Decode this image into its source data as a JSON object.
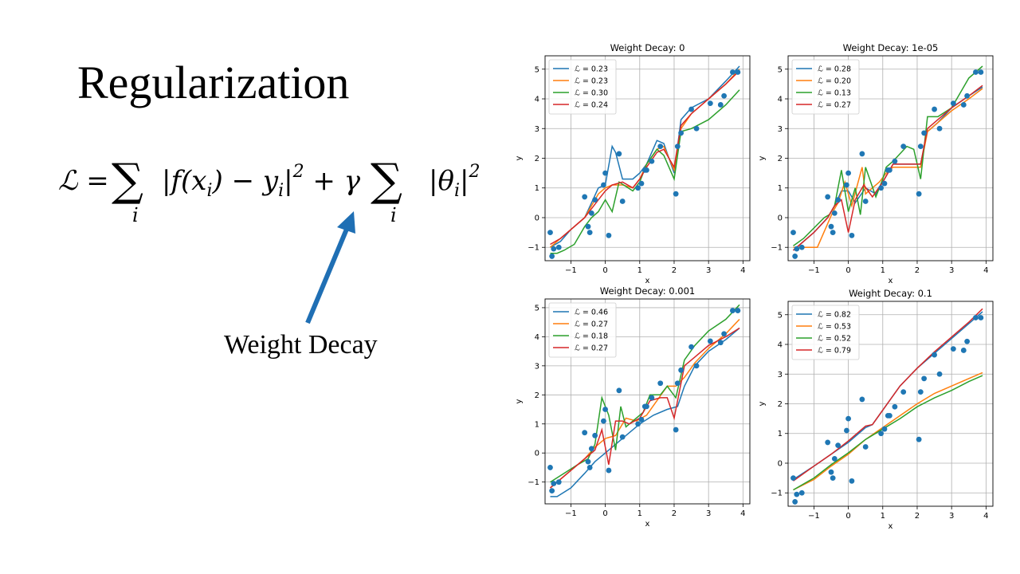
{
  "slide": {
    "title": "Regularization",
    "arrow_label": "Weight Decay",
    "formula": {
      "lhs": "ℒ = ",
      "sum": "∑",
      "sum_index": "i",
      "term1": "|f(x",
      "term1_sub": "i",
      "term1_mid": ") − y",
      "term1_sub2": "i",
      "term1_end": "|",
      "sq": "2",
      "plus_gamma": " + γ",
      "term2": "|θ",
      "term2_sub": "i",
      "term2_end": "|"
    },
    "arrow_color": "#1f6fb4"
  },
  "chart_data": [
    {
      "type": "line",
      "title": "Weight Decay: 0",
      "xlabel": "x",
      "ylabel": "y",
      "xlim": [
        -1.75,
        4.2
      ],
      "ylim": [
        -1.45,
        5.45
      ],
      "xticks": [
        -1,
        0,
        1,
        2,
        3,
        4
      ],
      "yticks": [
        -1,
        0,
        1,
        2,
        3,
        4,
        5
      ],
      "grid": true,
      "legend": "top-left",
      "series": [
        {
          "name": "ℒ = 0.23",
          "color": "#1f77b4",
          "x": [
            -1.6,
            -1.3,
            -1.0,
            -0.6,
            -0.4,
            -0.2,
            0.0,
            0.2,
            0.3,
            0.5,
            0.8,
            1.0,
            1.2,
            1.5,
            1.7,
            2.0,
            2.2,
            2.5,
            3.0,
            3.5,
            3.9
          ],
          "y": [
            -1.0,
            -0.8,
            -0.4,
            0.0,
            0.5,
            1.0,
            1.1,
            2.4,
            2.2,
            1.3,
            1.3,
            1.5,
            1.8,
            2.6,
            2.5,
            1.5,
            3.3,
            3.7,
            4.0,
            4.6,
            5.1
          ]
        },
        {
          "name": "ℒ = 0.23",
          "color": "#ff7f0e",
          "x": [
            -1.6,
            -1.3,
            -1.0,
            -0.6,
            -0.4,
            -0.2,
            0.0,
            0.2,
            0.5,
            0.8,
            1.0,
            1.2,
            1.5,
            1.7,
            2.0,
            2.2,
            2.5,
            3.0,
            3.5,
            3.9
          ],
          "y": [
            -1.0,
            -0.7,
            -0.4,
            0.0,
            0.4,
            0.8,
            1.0,
            1.1,
            1.1,
            1.0,
            1.3,
            1.8,
            2.3,
            2.4,
            1.6,
            3.0,
            3.5,
            4.0,
            4.5,
            5.0
          ]
        },
        {
          "name": "ℒ = 0.30",
          "color": "#2ca02c",
          "x": [
            -1.6,
            -1.4,
            -1.2,
            -0.9,
            -0.6,
            -0.4,
            -0.2,
            0.0,
            0.2,
            0.4,
            0.8,
            1.0,
            1.2,
            1.5,
            1.7,
            2.0,
            2.2,
            2.5,
            3.0,
            3.5,
            3.9
          ],
          "y": [
            -1.2,
            -1.2,
            -1.1,
            -0.9,
            -0.3,
            0.0,
            0.2,
            0.6,
            0.2,
            1.2,
            0.9,
            1.2,
            1.8,
            2.3,
            2.1,
            1.3,
            2.9,
            3.0,
            3.3,
            3.8,
            4.3
          ]
        },
        {
          "name": "ℒ = 0.24",
          "color": "#d62728",
          "x": [
            -1.6,
            -1.3,
            -1.0,
            -0.6,
            -0.4,
            -0.2,
            0.0,
            0.2,
            0.5,
            0.8,
            1.0,
            1.2,
            1.5,
            1.7,
            2.0,
            2.2,
            2.5,
            3.0,
            3.5,
            3.9
          ],
          "y": [
            -0.9,
            -0.7,
            -0.4,
            0.0,
            0.3,
            0.6,
            0.9,
            1.1,
            1.2,
            1.0,
            1.3,
            1.7,
            2.2,
            2.3,
            1.7,
            3.1,
            3.5,
            4.0,
            4.5,
            4.95
          ]
        }
      ],
      "points": {
        "x": [
          -1.6,
          -1.55,
          -1.5,
          -1.35,
          -0.6,
          -0.5,
          -0.45,
          -0.4,
          -0.3,
          -0.05,
          0.0,
          0.1,
          0.4,
          0.5,
          0.95,
          1.05,
          1.15,
          1.2,
          1.35,
          1.6,
          2.05,
          2.1,
          2.2,
          2.5,
          2.65,
          3.05,
          3.35,
          3.45,
          3.7,
          3.85
        ],
        "y": [
          -0.5,
          -1.3,
          -1.05,
          -1.0,
          0.7,
          -0.3,
          -0.5,
          0.15,
          0.6,
          1.1,
          1.5,
          -0.6,
          2.15,
          0.55,
          1.0,
          1.15,
          1.6,
          1.6,
          1.9,
          2.4,
          0.8,
          2.4,
          2.85,
          3.65,
          3.0,
          3.85,
          3.8,
          4.1,
          4.9,
          4.9
        ]
      }
    },
    {
      "type": "line",
      "title": "Weight Decay: 1e-05",
      "xlabel": "x",
      "ylabel": "y",
      "xlim": [
        -1.75,
        4.2
      ],
      "ylim": [
        -1.45,
        5.45
      ],
      "xticks": [
        -1,
        0,
        1,
        2,
        3,
        4
      ],
      "yticks": [
        -1,
        0,
        1,
        2,
        3,
        4,
        5
      ],
      "grid": true,
      "legend": "top-left",
      "series": [
        {
          "name": "ℒ = 0.28",
          "color": "#1f77b4",
          "x": [
            -1.6,
            -1.0,
            -0.6,
            -0.4,
            -0.2,
            0.0,
            0.2,
            0.5,
            0.8,
            1.0,
            1.3,
            1.6,
            1.9,
            2.1,
            2.3,
            2.6,
            3.0,
            3.5,
            3.9
          ],
          "y": [
            -1.1,
            -0.5,
            0.0,
            0.4,
            0.9,
            0.9,
            0.5,
            1.0,
            0.8,
            1.2,
            1.8,
            1.8,
            1.8,
            1.8,
            2.9,
            3.2,
            3.7,
            4.1,
            4.4
          ]
        },
        {
          "name": "ℒ = 0.20",
          "color": "#ff7f0e",
          "x": [
            -1.6,
            -1.1,
            -0.9,
            -0.6,
            -0.45,
            -0.3,
            -0.1,
            0.1,
            0.4,
            0.5,
            0.7,
            0.9,
            1.1,
            1.3,
            1.6,
            1.9,
            2.1,
            2.3,
            2.6,
            3.0,
            3.5,
            3.9
          ],
          "y": [
            -1.0,
            -1.0,
            -1.0,
            -0.2,
            0.2,
            0.5,
            1.2,
            0.4,
            1.7,
            0.8,
            1.0,
            1.2,
            1.5,
            1.7,
            1.7,
            1.7,
            1.7,
            2.9,
            3.2,
            3.6,
            4.0,
            4.35
          ]
        },
        {
          "name": "ℒ = 0.13",
          "color": "#2ca02c",
          "x": [
            -1.6,
            -1.3,
            -0.7,
            -0.55,
            -0.4,
            -0.2,
            0.0,
            0.2,
            0.35,
            0.5,
            0.8,
            1.0,
            1.1,
            1.3,
            1.7,
            1.9,
            2.1,
            2.3,
            2.6,
            3.0,
            3.5,
            3.9
          ],
          "y": [
            -0.95,
            -0.7,
            0.0,
            0.1,
            0.4,
            1.6,
            0.2,
            1.0,
            0.1,
            1.7,
            0.7,
            1.3,
            1.7,
            1.9,
            2.4,
            2.3,
            1.3,
            3.4,
            3.4,
            3.7,
            4.7,
            5.1
          ]
        },
        {
          "name": "ℒ = 0.27",
          "color": "#d62728",
          "x": [
            -1.6,
            -1.0,
            -0.6,
            -0.4,
            -0.2,
            0.0,
            0.2,
            0.45,
            0.7,
            1.0,
            1.3,
            1.6,
            1.9,
            2.1,
            2.3,
            2.6,
            3.0,
            3.5,
            3.9
          ],
          "y": [
            -1.1,
            -0.5,
            0.0,
            0.4,
            0.6,
            -0.5,
            0.6,
            1.1,
            0.7,
            1.2,
            1.8,
            1.8,
            1.8,
            1.8,
            3.0,
            3.3,
            3.7,
            4.1,
            4.45
          ]
        }
      ],
      "points": {
        "x": [
          -1.6,
          -1.55,
          -1.5,
          -1.35,
          -0.6,
          -0.5,
          -0.45,
          -0.4,
          -0.3,
          -0.05,
          0.0,
          0.1,
          0.4,
          0.5,
          0.95,
          1.05,
          1.15,
          1.2,
          1.35,
          1.6,
          2.05,
          2.1,
          2.2,
          2.5,
          2.65,
          3.05,
          3.35,
          3.45,
          3.7,
          3.85
        ],
        "y": [
          -0.5,
          -1.3,
          -1.05,
          -1.0,
          0.7,
          -0.3,
          -0.5,
          0.15,
          0.6,
          1.1,
          1.5,
          -0.6,
          2.15,
          0.55,
          1.0,
          1.15,
          1.6,
          1.6,
          1.9,
          2.4,
          0.8,
          2.4,
          2.85,
          3.65,
          3.0,
          3.85,
          3.8,
          4.1,
          4.9,
          4.9
        ]
      }
    },
    {
      "type": "line",
      "title": "Weight Decay: 0.001",
      "xlabel": "x",
      "ylabel": "y",
      "xlim": [
        -1.75,
        4.2
      ],
      "ylim": [
        -1.75,
        5.3
      ],
      "xticks": [
        -1,
        0,
        1,
        2,
        3,
        4
      ],
      "yticks": [
        -1,
        0,
        1,
        2,
        3,
        4,
        5
      ],
      "grid": true,
      "legend": "top-left",
      "series": [
        {
          "name": "ℒ = 0.46",
          "color": "#1f77b4",
          "x": [
            -1.6,
            -1.4,
            -1.0,
            -0.6,
            -0.3,
            0.0,
            0.3,
            0.6,
            1.0,
            1.4,
            1.8,
            2.1,
            2.3,
            2.6,
            3.0,
            3.5,
            3.9
          ],
          "y": [
            -1.5,
            -1.5,
            -1.2,
            -0.7,
            -0.3,
            0.0,
            0.3,
            0.6,
            1.0,
            1.3,
            1.5,
            1.6,
            2.3,
            3.0,
            3.5,
            3.9,
            4.3
          ]
        },
        {
          "name": "ℒ = 0.27",
          "color": "#ff7f0e",
          "x": [
            -1.6,
            -1.0,
            -0.6,
            -0.3,
            0.0,
            0.3,
            0.6,
            0.9,
            1.2,
            1.5,
            1.8,
            2.05,
            2.3,
            2.6,
            3.0,
            3.5,
            3.9
          ],
          "y": [
            -1.2,
            -0.6,
            -0.2,
            0.2,
            0.5,
            0.6,
            1.2,
            1.1,
            1.3,
            1.8,
            2.3,
            2.3,
            2.6,
            3.1,
            3.6,
            4.1,
            4.6
          ]
        },
        {
          "name": "ℒ = 0.18",
          "color": "#2ca02c",
          "x": [
            -1.6,
            -1.2,
            -0.8,
            -0.5,
            -0.3,
            -0.1,
            0.1,
            0.3,
            0.45,
            0.6,
            0.9,
            1.1,
            1.3,
            1.6,
            1.8,
            2.05,
            2.3,
            2.6,
            3.0,
            3.5,
            3.9
          ],
          "y": [
            -1.0,
            -0.7,
            -0.4,
            -0.2,
            0.3,
            1.9,
            1.3,
            0.1,
            1.6,
            0.9,
            1.2,
            1.4,
            2.0,
            2.0,
            2.3,
            1.9,
            3.2,
            3.7,
            4.2,
            4.6,
            5.1
          ]
        },
        {
          "name": "ℒ = 0.27",
          "color": "#d62728",
          "x": [
            -1.6,
            -1.0,
            -0.6,
            -0.3,
            -0.1,
            0.1,
            0.3,
            0.5,
            0.7,
            1.0,
            1.3,
            1.6,
            1.8,
            2.0,
            2.3,
            2.6,
            3.0,
            3.5,
            3.9
          ],
          "y": [
            -1.2,
            -0.6,
            -0.2,
            0.1,
            0.8,
            -0.4,
            1.1,
            1.1,
            1.0,
            1.2,
            1.8,
            1.9,
            1.9,
            1.2,
            3.0,
            3.3,
            3.7,
            4.0,
            4.3
          ]
        }
      ],
      "points": {
        "x": [
          -1.6,
          -1.55,
          -1.5,
          -1.35,
          -0.6,
          -0.5,
          -0.45,
          -0.4,
          -0.3,
          -0.05,
          0.0,
          0.1,
          0.4,
          0.5,
          0.95,
          1.05,
          1.15,
          1.2,
          1.35,
          1.6,
          2.05,
          2.1,
          2.2,
          2.5,
          2.65,
          3.05,
          3.35,
          3.45,
          3.7,
          3.85
        ],
        "y": [
          -0.5,
          -1.3,
          -1.05,
          -1.0,
          0.7,
          -0.3,
          -0.5,
          0.15,
          0.6,
          1.1,
          1.5,
          -0.6,
          2.15,
          0.55,
          1.0,
          1.15,
          1.6,
          1.6,
          1.9,
          2.4,
          0.8,
          2.4,
          2.85,
          3.65,
          3.0,
          3.85,
          3.8,
          4.1,
          4.9,
          4.9
        ]
      }
    },
    {
      "type": "line",
      "title": "Weight Decay: 0.1",
      "xlabel": "x",
      "ylabel": "y",
      "xlim": [
        -1.75,
        4.2
      ],
      "ylim": [
        -1.45,
        5.45
      ],
      "xticks": [
        -1,
        0,
        1,
        2,
        3,
        4
      ],
      "yticks": [
        -1,
        0,
        1,
        2,
        3,
        4,
        5
      ],
      "grid": true,
      "legend": "top-left",
      "series": [
        {
          "name": "ℒ = 0.82",
          "color": "#1f77b4",
          "x": [
            -1.6,
            -1.0,
            -0.5,
            0.0,
            0.5,
            0.7,
            1.5,
            2.0,
            2.5,
            3.0,
            3.5,
            3.9
          ],
          "y": [
            -0.55,
            -0.1,
            0.3,
            0.7,
            1.2,
            1.3,
            2.6,
            3.2,
            3.7,
            4.2,
            4.7,
            5.1
          ]
        },
        {
          "name": "ℒ = 0.53",
          "color": "#ff7f0e",
          "x": [
            -1.6,
            -1.0,
            -0.5,
            0.0,
            0.5,
            1.0,
            1.5,
            2.0,
            2.5,
            3.0,
            3.5,
            3.9
          ],
          "y": [
            -0.9,
            -0.55,
            -0.1,
            0.3,
            0.8,
            1.2,
            1.6,
            2.0,
            2.35,
            2.6,
            2.85,
            3.05
          ]
        },
        {
          "name": "ℒ = 0.52",
          "color": "#2ca02c",
          "x": [
            -1.6,
            -1.0,
            -0.5,
            0.0,
            0.5,
            1.0,
            1.5,
            2.0,
            2.5,
            3.0,
            3.5,
            3.9
          ],
          "y": [
            -0.9,
            -0.5,
            -0.05,
            0.35,
            0.8,
            1.15,
            1.5,
            1.9,
            2.2,
            2.45,
            2.75,
            2.95
          ]
        },
        {
          "name": "ℒ = 0.79",
          "color": "#d62728",
          "x": [
            -1.6,
            -1.0,
            -0.5,
            0.0,
            0.5,
            0.7,
            1.5,
            2.0,
            2.5,
            3.0,
            3.5,
            3.9
          ],
          "y": [
            -0.6,
            -0.1,
            0.3,
            0.75,
            1.25,
            1.3,
            2.6,
            3.2,
            3.75,
            4.25,
            4.75,
            5.2
          ]
        }
      ],
      "points": {
        "x": [
          -1.6,
          -1.55,
          -1.5,
          -1.35,
          -0.6,
          -0.5,
          -0.45,
          -0.4,
          -0.3,
          -0.05,
          0.0,
          0.1,
          0.4,
          0.5,
          0.95,
          1.05,
          1.15,
          1.2,
          1.35,
          1.6,
          2.05,
          2.1,
          2.2,
          2.5,
          2.65,
          3.05,
          3.35,
          3.45,
          3.7,
          3.85
        ],
        "y": [
          -0.5,
          -1.3,
          -1.05,
          -1.0,
          0.7,
          -0.3,
          -0.5,
          0.15,
          0.6,
          1.1,
          1.5,
          -0.6,
          2.15,
          0.55,
          1.0,
          1.15,
          1.6,
          1.6,
          1.9,
          2.4,
          0.8,
          2.4,
          2.85,
          3.65,
          3.0,
          3.85,
          3.8,
          4.1,
          4.9,
          4.9
        ]
      }
    }
  ]
}
